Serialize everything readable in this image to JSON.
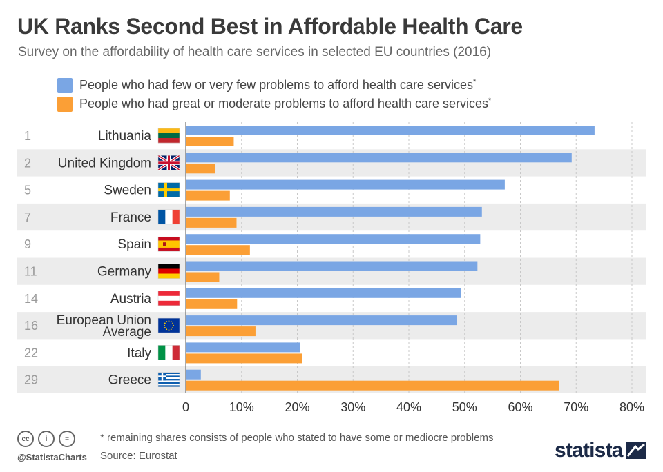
{
  "title": "UK Ranks Second Best in Affordable Health Care",
  "subtitle": "Survey on the affordability of health care services in selected EU countries (2016)",
  "legend": [
    {
      "label": "People who had few or very few problems to afford health care services",
      "marker": "*",
      "color": "#7aa6e4"
    },
    {
      "label": "People who had great or moderate problems to afford health care services",
      "marker": "*",
      "color": "#fb9f36"
    }
  ],
  "chart_data": {
    "type": "bar",
    "orientation": "horizontal",
    "categories": [
      "Lithuania",
      "United Kingdom",
      "Sweden",
      "France",
      "Spain",
      "Germany",
      "Austria",
      "European Union Average",
      "Italy",
      "Greece"
    ],
    "category_lines": [
      [
        "Lithuania"
      ],
      [
        "United Kingdom"
      ],
      [
        "Sweden"
      ],
      [
        "France"
      ],
      [
        "Spain"
      ],
      [
        "Germany"
      ],
      [
        "Austria"
      ],
      [
        "European Union",
        "Average"
      ],
      [
        "Italy"
      ],
      [
        "Greece"
      ]
    ],
    "ranks": [
      "1",
      "2",
      "5",
      "7",
      "9",
      "11",
      "14",
      "16",
      "22",
      "29"
    ],
    "flags": [
      "lithuania-flag",
      "uk-flag",
      "sweden-flag",
      "france-flag",
      "spain-flag",
      "germany-flag",
      "austria-flag",
      "eu-flag",
      "italy-flag",
      "greece-flag"
    ],
    "series": [
      {
        "name": "People who had few or very few problems to afford health care services",
        "color": "#7aa6e4",
        "values": [
          73.3,
          69.2,
          57.2,
          53.1,
          52.8,
          52.3,
          49.3,
          48.6,
          20.5,
          2.7
        ]
      },
      {
        "name": "People who had great or moderate problems to afford health care services",
        "color": "#fb9f36",
        "values": [
          8.6,
          5.3,
          7.9,
          9.1,
          11.5,
          6.0,
          9.2,
          12.5,
          20.9,
          66.9
        ]
      }
    ],
    "xlim": [
      0,
      80
    ],
    "xticks": [
      0,
      10,
      20,
      30,
      40,
      50,
      60,
      70,
      80
    ],
    "xtick_labels": [
      "0",
      "10%",
      "20%",
      "30%",
      "40%",
      "50%",
      "60%",
      "70%",
      "80%"
    ],
    "grid": true
  },
  "footer": {
    "footnote": "* remaining shares consists of people who stated to have some or mediocre problems",
    "source": "Source: Eurostat",
    "handle": "@StatistaCharts",
    "brand": "statista",
    "license_icons": [
      "cc-icon",
      "attribution-icon",
      "no-derivatives-icon"
    ],
    "license_glyphs": [
      "cc",
      "i",
      "="
    ]
  }
}
